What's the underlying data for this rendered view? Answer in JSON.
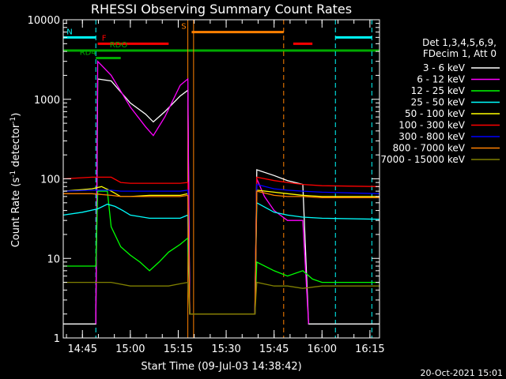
{
  "chart_data": {
    "type": "line",
    "title": "RHESSI Observing Summary Count Rates",
    "xlabel": "Start Time (09-Jul-03 14:38:42)",
    "ylabel": "Count Rate (s",
    "ylabel_exp1": "-1",
    "ylabel_mid": " detector",
    "ylabel_exp2": "-1",
    "ylabel_end": ")",
    "yscale": "log",
    "ylim": [
      1,
      10000
    ],
    "xlim_minutes": [
      14.65,
      16.3
    ],
    "y_ticks": [
      1,
      10,
      100,
      1000,
      10000
    ],
    "y_tick_labels": [
      "1",
      "10",
      "100",
      "1000",
      "10000"
    ],
    "x_ticks": [
      14.75,
      15.0,
      15.25,
      15.5,
      15.75,
      16.0,
      16.25
    ],
    "x_tick_labels": [
      "14:45",
      "15:00",
      "15:15",
      "15:30",
      "15:45",
      "16:00",
      "16:15"
    ],
    "legend_header": [
      "Det 1,3,4,5,6,9,",
      "FDecim 1, Att 0"
    ],
    "series": [
      {
        "name": "3 - 6 keV",
        "color": "#ffffff",
        "points": [
          [
            14.65,
            1.5
          ],
          [
            14.82,
            1.5
          ],
          [
            14.83,
            1800
          ],
          [
            14.9,
            1700
          ],
          [
            15.0,
            900
          ],
          [
            15.08,
            650
          ],
          [
            15.12,
            520
          ],
          [
            15.18,
            700
          ],
          [
            15.26,
            1100
          ],
          [
            15.3,
            1300
          ],
          [
            15.31,
            2
          ],
          [
            15.65,
            2
          ],
          [
            15.66,
            130
          ],
          [
            15.75,
            110
          ],
          [
            15.82,
            95
          ],
          [
            15.9,
            85
          ],
          [
            15.93,
            1.5
          ],
          [
            16.0,
            1.5
          ],
          [
            16.3,
            1.5
          ]
        ]
      },
      {
        "name": "6 - 12 keV",
        "color": "#ff00ff",
        "points": [
          [
            14.82,
            1.5
          ],
          [
            14.83,
            3000
          ],
          [
            14.9,
            2000
          ],
          [
            15.0,
            800
          ],
          [
            15.08,
            450
          ],
          [
            15.12,
            350
          ],
          [
            15.18,
            600
          ],
          [
            15.26,
            1500
          ],
          [
            15.3,
            1800
          ],
          [
            15.31,
            2
          ],
          [
            15.65,
            2
          ],
          [
            15.66,
            100
          ],
          [
            15.7,
            60
          ],
          [
            15.75,
            40
          ],
          [
            15.82,
            30
          ],
          [
            15.9,
            30
          ],
          [
            15.93,
            1.5
          ]
        ]
      },
      {
        "name": "12 - 25 keV",
        "color": "#00ff00",
        "points": [
          [
            14.65,
            8
          ],
          [
            14.82,
            8
          ],
          [
            14.83,
            70
          ],
          [
            14.88,
            70
          ],
          [
            14.9,
            25
          ],
          [
            14.95,
            14
          ],
          [
            15.0,
            11
          ],
          [
            15.05,
            9
          ],
          [
            15.1,
            7
          ],
          [
            15.15,
            9
          ],
          [
            15.2,
            12
          ],
          [
            15.26,
            15
          ],
          [
            15.3,
            18
          ],
          [
            15.31,
            2
          ],
          [
            15.65,
            2
          ],
          [
            15.66,
            9
          ],
          [
            15.75,
            7
          ],
          [
            15.82,
            6
          ],
          [
            15.9,
            7
          ],
          [
            15.95,
            5.5
          ],
          [
            16.0,
            5
          ],
          [
            16.3,
            5
          ]
        ]
      },
      {
        "name": "25 - 50 keV",
        "color": "#00ffff",
        "points": [
          [
            14.65,
            35
          ],
          [
            14.75,
            38
          ],
          [
            14.83,
            42
          ],
          [
            14.88,
            48
          ],
          [
            14.92,
            45
          ],
          [
            14.96,
            40
          ],
          [
            15.0,
            35
          ],
          [
            15.1,
            32
          ],
          [
            15.2,
            32
          ],
          [
            15.26,
            32
          ],
          [
            15.3,
            35
          ],
          [
            15.31,
            2
          ],
          [
            15.65,
            2
          ],
          [
            15.66,
            50
          ],
          [
            15.75,
            38
          ],
          [
            15.82,
            35
          ],
          [
            15.9,
            33
          ],
          [
            16.0,
            32
          ],
          [
            16.3,
            31
          ]
        ]
      },
      {
        "name": "50 - 100 keV",
        "color": "#ffff00",
        "points": [
          [
            14.65,
            70
          ],
          [
            14.8,
            75
          ],
          [
            14.85,
            80
          ],
          [
            14.9,
            70
          ],
          [
            14.95,
            60
          ],
          [
            15.0,
            60
          ],
          [
            15.1,
            62
          ],
          [
            15.2,
            62
          ],
          [
            15.26,
            62
          ],
          [
            15.3,
            65
          ],
          [
            15.31,
            2
          ],
          [
            15.65,
            2
          ],
          [
            15.66,
            72
          ],
          [
            15.75,
            68
          ],
          [
            15.82,
            65
          ],
          [
            15.9,
            62
          ],
          [
            16.0,
            60
          ],
          [
            16.3,
            60
          ]
        ]
      },
      {
        "name": "100 - 300 keV",
        "color": "#ff0000",
        "points": [
          [
            14.65,
            100
          ],
          [
            14.8,
            105
          ],
          [
            14.9,
            105
          ],
          [
            14.95,
            90
          ],
          [
            15.0,
            88
          ],
          [
            15.1,
            88
          ],
          [
            15.2,
            88
          ],
          [
            15.26,
            88
          ],
          [
            15.3,
            90
          ],
          [
            15.31,
            2
          ],
          [
            15.65,
            2
          ],
          [
            15.66,
            105
          ],
          [
            15.75,
            95
          ],
          [
            15.82,
            90
          ],
          [
            15.9,
            85
          ],
          [
            16.0,
            82
          ],
          [
            16.3,
            80
          ]
        ]
      },
      {
        "name": "300 - 800 keV",
        "color": "#0000ff",
        "points": [
          [
            14.65,
            70
          ],
          [
            14.8,
            72
          ],
          [
            14.9,
            72
          ],
          [
            14.95,
            70
          ],
          [
            15.0,
            70
          ],
          [
            15.1,
            70
          ],
          [
            15.2,
            70
          ],
          [
            15.26,
            70
          ],
          [
            15.3,
            72
          ],
          [
            15.31,
            2
          ],
          [
            15.65,
            2
          ],
          [
            15.66,
            85
          ],
          [
            15.75,
            75
          ],
          [
            15.82,
            72
          ],
          [
            15.9,
            70
          ],
          [
            16.0,
            68
          ],
          [
            16.3,
            65
          ]
        ]
      },
      {
        "name": "800 - 7000 keV",
        "color": "#ff8000",
        "points": [
          [
            14.65,
            65
          ],
          [
            14.8,
            65
          ],
          [
            14.9,
            62
          ],
          [
            14.95,
            60
          ],
          [
            15.0,
            60
          ],
          [
            15.1,
            60
          ],
          [
            15.2,
            60
          ],
          [
            15.26,
            60
          ],
          [
            15.3,
            62
          ],
          [
            15.31,
            2
          ],
          [
            15.65,
            2
          ],
          [
            15.66,
            70
          ],
          [
            15.75,
            62
          ],
          [
            15.82,
            60
          ],
          [
            15.9,
            60
          ],
          [
            16.0,
            58
          ],
          [
            16.3,
            58
          ]
        ]
      },
      {
        "name": "7000 - 15000 keV",
        "color": "#808000",
        "points": [
          [
            14.65,
            5
          ],
          [
            14.8,
            5
          ],
          [
            14.9,
            5
          ],
          [
            15.0,
            4.5
          ],
          [
            15.1,
            4.5
          ],
          [
            15.2,
            4.5
          ],
          [
            15.26,
            4.8
          ],
          [
            15.3,
            5
          ],
          [
            15.31,
            2
          ],
          [
            15.65,
            2
          ],
          [
            15.66,
            5
          ],
          [
            15.75,
            4.5
          ],
          [
            15.82,
            4.5
          ],
          [
            15.9,
            4.2
          ],
          [
            16.0,
            4.5
          ],
          [
            16.3,
            4.5
          ]
        ]
      }
    ],
    "flags": [
      {
        "label": "N",
        "color": "#00ffff",
        "segments": [
          [
            14.65,
            14.82
          ],
          [
            16.07,
            16.26
          ]
        ],
        "level": 6000
      },
      {
        "label": "S",
        "color": "#ff8000",
        "segments": [
          [
            15.32,
            15.8
          ]
        ],
        "level": 7000
      },
      {
        "label": "F",
        "color": "#ff0000",
        "segments": [
          [
            14.83,
            15.2
          ],
          [
            15.85,
            15.95
          ]
        ],
        "level": 5000
      },
      {
        "label": "RDO",
        "color": "#00aa00",
        "segments": [
          [
            14.65,
            16.3
          ]
        ],
        "level": 4100
      },
      {
        "label": "RD4",
        "color": "#00aa00",
        "segments": [
          [
            14.82,
            14.95
          ]
        ],
        "level": 3300
      }
    ],
    "vlines": [
      {
        "x": 14.82,
        "color": "#00ffff",
        "style": "dashed"
      },
      {
        "x": 15.3,
        "color": "#ff8000",
        "style": "solid"
      },
      {
        "x": 15.33,
        "color": "#ff8000",
        "style": "solid"
      },
      {
        "x": 15.8,
        "color": "#ff8000",
        "style": "dashed"
      },
      {
        "x": 16.07,
        "color": "#00ffff",
        "style": "dashed"
      },
      {
        "x": 16.26,
        "color": "#00ffff",
        "style": "dashed"
      }
    ],
    "footer_date": "20-Oct-2021 15:01"
  }
}
